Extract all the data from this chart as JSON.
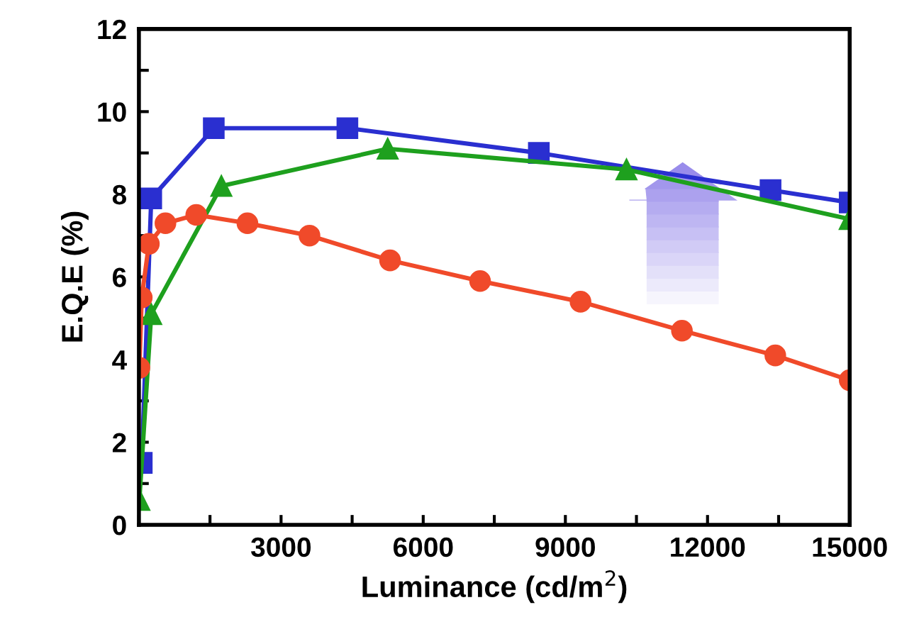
{
  "chart_data": {
    "type": "line",
    "xlabel": "Luminance (cd/m$^{2}$)",
    "ylabel": "E.Q.E (%)",
    "series": [
      {
        "color": "#2a2fd0",
        "marker": "square",
        "x": [
          60,
          260,
          1580,
          4400,
          8440,
          13330,
          15000
        ],
        "values": [
          1.5,
          7.9,
          9.6,
          9.6,
          9.0,
          8.1,
          7.8
        ]
      },
      {
        "color": "#1ea01e",
        "marker": "triangle",
        "x": [
          10,
          260,
          1740,
          5250,
          10290,
          15000
        ],
        "values": [
          0.6,
          5.1,
          8.2,
          9.1,
          8.6,
          7.4
        ]
      },
      {
        "color": "#f04a2a",
        "marker": "circle",
        "x": [
          10,
          60,
          210,
          560,
          1210,
          2290,
          3600,
          5300,
          7200,
          9320,
          11460,
          13430,
          15000
        ],
        "values": [
          3.8,
          5.5,
          6.8,
          7.3,
          7.5,
          7.3,
          7.0,
          6.4,
          5.9,
          5.4,
          4.7,
          4.1,
          3.5
        ]
      }
    ],
    "xlim": [
      0,
      15000
    ],
    "ylim": [
      0,
      12
    ],
    "xticks": [
      {
        "value": 0,
        "label": null
      },
      {
        "value": 1500,
        "label": null
      },
      3000,
      {
        "value": 4500,
        "label": null
      },
      6000,
      {
        "value": 7500,
        "label": null
      },
      9000,
      {
        "value": 10500,
        "label": null
      },
      12000,
      {
        "value": 13500,
        "label": null
      },
      15000
    ],
    "yticks": [
      0,
      {
        "value": 1,
        "label": null
      },
      2,
      {
        "value": 3,
        "label": null
      },
      4,
      {
        "value": 5,
        "label": null
      },
      6,
      {
        "value": 7,
        "label": null
      },
      8,
      {
        "value": 9,
        "label": null
      },
      10,
      {
        "value": 11,
        "label": null
      },
      12
    ],
    "line_style": "solid",
    "grid": false,
    "legend": false
  }
}
